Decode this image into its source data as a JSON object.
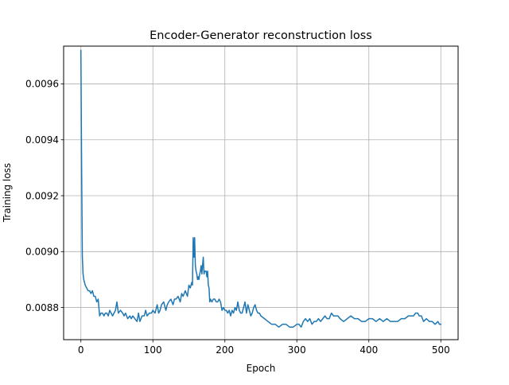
{
  "chart_data": {
    "type": "line",
    "title": "Encoder-Generator reconstruction loss",
    "xlabel": "Epoch",
    "ylabel": "Training loss",
    "xlim": [
      -24,
      524
    ],
    "ylim": [
      0.008685,
      0.009735
    ],
    "x_ticks": [
      0,
      100,
      200,
      300,
      400,
      500
    ],
    "x_tick_labels": [
      "0",
      "100",
      "200",
      "300",
      "400",
      "500"
    ],
    "y_ticks": [
      0.0088,
      0.009,
      0.0092,
      0.0094,
      0.0096
    ],
    "y_tick_labels": [
      "0.0088",
      "0.0090",
      "0.0092",
      "0.0094",
      "0.0096"
    ],
    "grid": true,
    "line_color": "#1f77b4",
    "series": [
      {
        "x": [
          0,
          1,
          2,
          3,
          4,
          6,
          8,
          10,
          12,
          14,
          16,
          18,
          20,
          22,
          24,
          26,
          28,
          30,
          32,
          34,
          36,
          38,
          40,
          42,
          44,
          46,
          48,
          50,
          52,
          55,
          58,
          60,
          62,
          65,
          68,
          70,
          72,
          75,
          78,
          80,
          82,
          85,
          88,
          90,
          92,
          95,
          98,
          100,
          103,
          106,
          108,
          110,
          112,
          115,
          118,
          120,
          122,
          125,
          128,
          130,
          132,
          135,
          138,
          140,
          142,
          145,
          148,
          150,
          152,
          154,
          155,
          156,
          157,
          158,
          159,
          160,
          161,
          162,
          163,
          164,
          165,
          166,
          167,
          168,
          169,
          170,
          171,
          172,
          173,
          174,
          175,
          176,
          177,
          178,
          179,
          180,
          182,
          184,
          186,
          188,
          190,
          192,
          194,
          196,
          198,
          200,
          202,
          204,
          206,
          208,
          210,
          212,
          214,
          216,
          218,
          220,
          222,
          224,
          226,
          228,
          230,
          232,
          234,
          236,
          238,
          240,
          242,
          244,
          246,
          248,
          250,
          255,
          260,
          265,
          270,
          275,
          280,
          285,
          290,
          295,
          300,
          303,
          306,
          309,
          312,
          315,
          318,
          321,
          324,
          327,
          330,
          333,
          336,
          339,
          342,
          345,
          348,
          351,
          354,
          357,
          360,
          365,
          370,
          375,
          380,
          385,
          390,
          395,
          400,
          405,
          410,
          415,
          420,
          425,
          430,
          435,
          440,
          445,
          450,
          455,
          458,
          460,
          462,
          465,
          468,
          470,
          473,
          476,
          480,
          484,
          488,
          492,
          496,
          498,
          500
        ],
        "y": [
          0.00972,
          0.0093,
          0.00898,
          0.00892,
          0.0089,
          0.00888,
          0.00887,
          0.00886,
          0.00886,
          0.00885,
          0.00886,
          0.00884,
          0.00884,
          0.00882,
          0.00883,
          0.00877,
          0.00878,
          0.00878,
          0.00877,
          0.00878,
          0.00878,
          0.00877,
          0.00879,
          0.00878,
          0.00877,
          0.00878,
          0.00879,
          0.00882,
          0.00878,
          0.00879,
          0.00878,
          0.00877,
          0.00878,
          0.00876,
          0.00877,
          0.00876,
          0.00877,
          0.00876,
          0.00875,
          0.00878,
          0.00875,
          0.00877,
          0.00877,
          0.00879,
          0.00877,
          0.00878,
          0.00878,
          0.00879,
          0.00878,
          0.00881,
          0.00878,
          0.00879,
          0.00881,
          0.00882,
          0.00879,
          0.00881,
          0.00882,
          0.00883,
          0.00881,
          0.00883,
          0.00883,
          0.00884,
          0.00882,
          0.00885,
          0.00884,
          0.00886,
          0.00884,
          0.00888,
          0.00887,
          0.00889,
          0.00888,
          0.00905,
          0.00898,
          0.00905,
          0.00895,
          0.00893,
          0.00892,
          0.0089,
          0.00891,
          0.0089,
          0.00892,
          0.00893,
          0.00895,
          0.00892,
          0.00895,
          0.00898,
          0.00892,
          0.00893,
          0.00893,
          0.00893,
          0.00891,
          0.00893,
          0.00888,
          0.00887,
          0.00882,
          0.00883,
          0.00882,
          0.00883,
          0.00883,
          0.00882,
          0.00882,
          0.00883,
          0.00882,
          0.00879,
          0.0088,
          0.00879,
          0.00879,
          0.00878,
          0.00879,
          0.00877,
          0.00879,
          0.00878,
          0.0088,
          0.00879,
          0.00882,
          0.00879,
          0.00878,
          0.00878,
          0.0088,
          0.00882,
          0.00878,
          0.00881,
          0.00879,
          0.00877,
          0.00878,
          0.0088,
          0.00881,
          0.00879,
          0.00878,
          0.00878,
          0.00877,
          0.00876,
          0.00875,
          0.00874,
          0.00874,
          0.00873,
          0.00874,
          0.00874,
          0.00873,
          0.00873,
          0.00874,
          0.00874,
          0.00873,
          0.00875,
          0.00876,
          0.00875,
          0.00876,
          0.00874,
          0.00875,
          0.00875,
          0.00876,
          0.00875,
          0.00876,
          0.00877,
          0.00876,
          0.00876,
          0.00878,
          0.00877,
          0.00877,
          0.00877,
          0.00876,
          0.00875,
          0.00876,
          0.00877,
          0.00876,
          0.00876,
          0.00875,
          0.00875,
          0.00876,
          0.00876,
          0.00875,
          0.00876,
          0.00875,
          0.00876,
          0.00875,
          0.00875,
          0.00875,
          0.00876,
          0.00876,
          0.00877,
          0.00877,
          0.00877,
          0.00877,
          0.00878,
          0.00878,
          0.00877,
          0.00877,
          0.00875,
          0.00876,
          0.00875,
          0.00875,
          0.00874,
          0.00875,
          0.00874,
          0.00874
        ]
      }
    ]
  }
}
